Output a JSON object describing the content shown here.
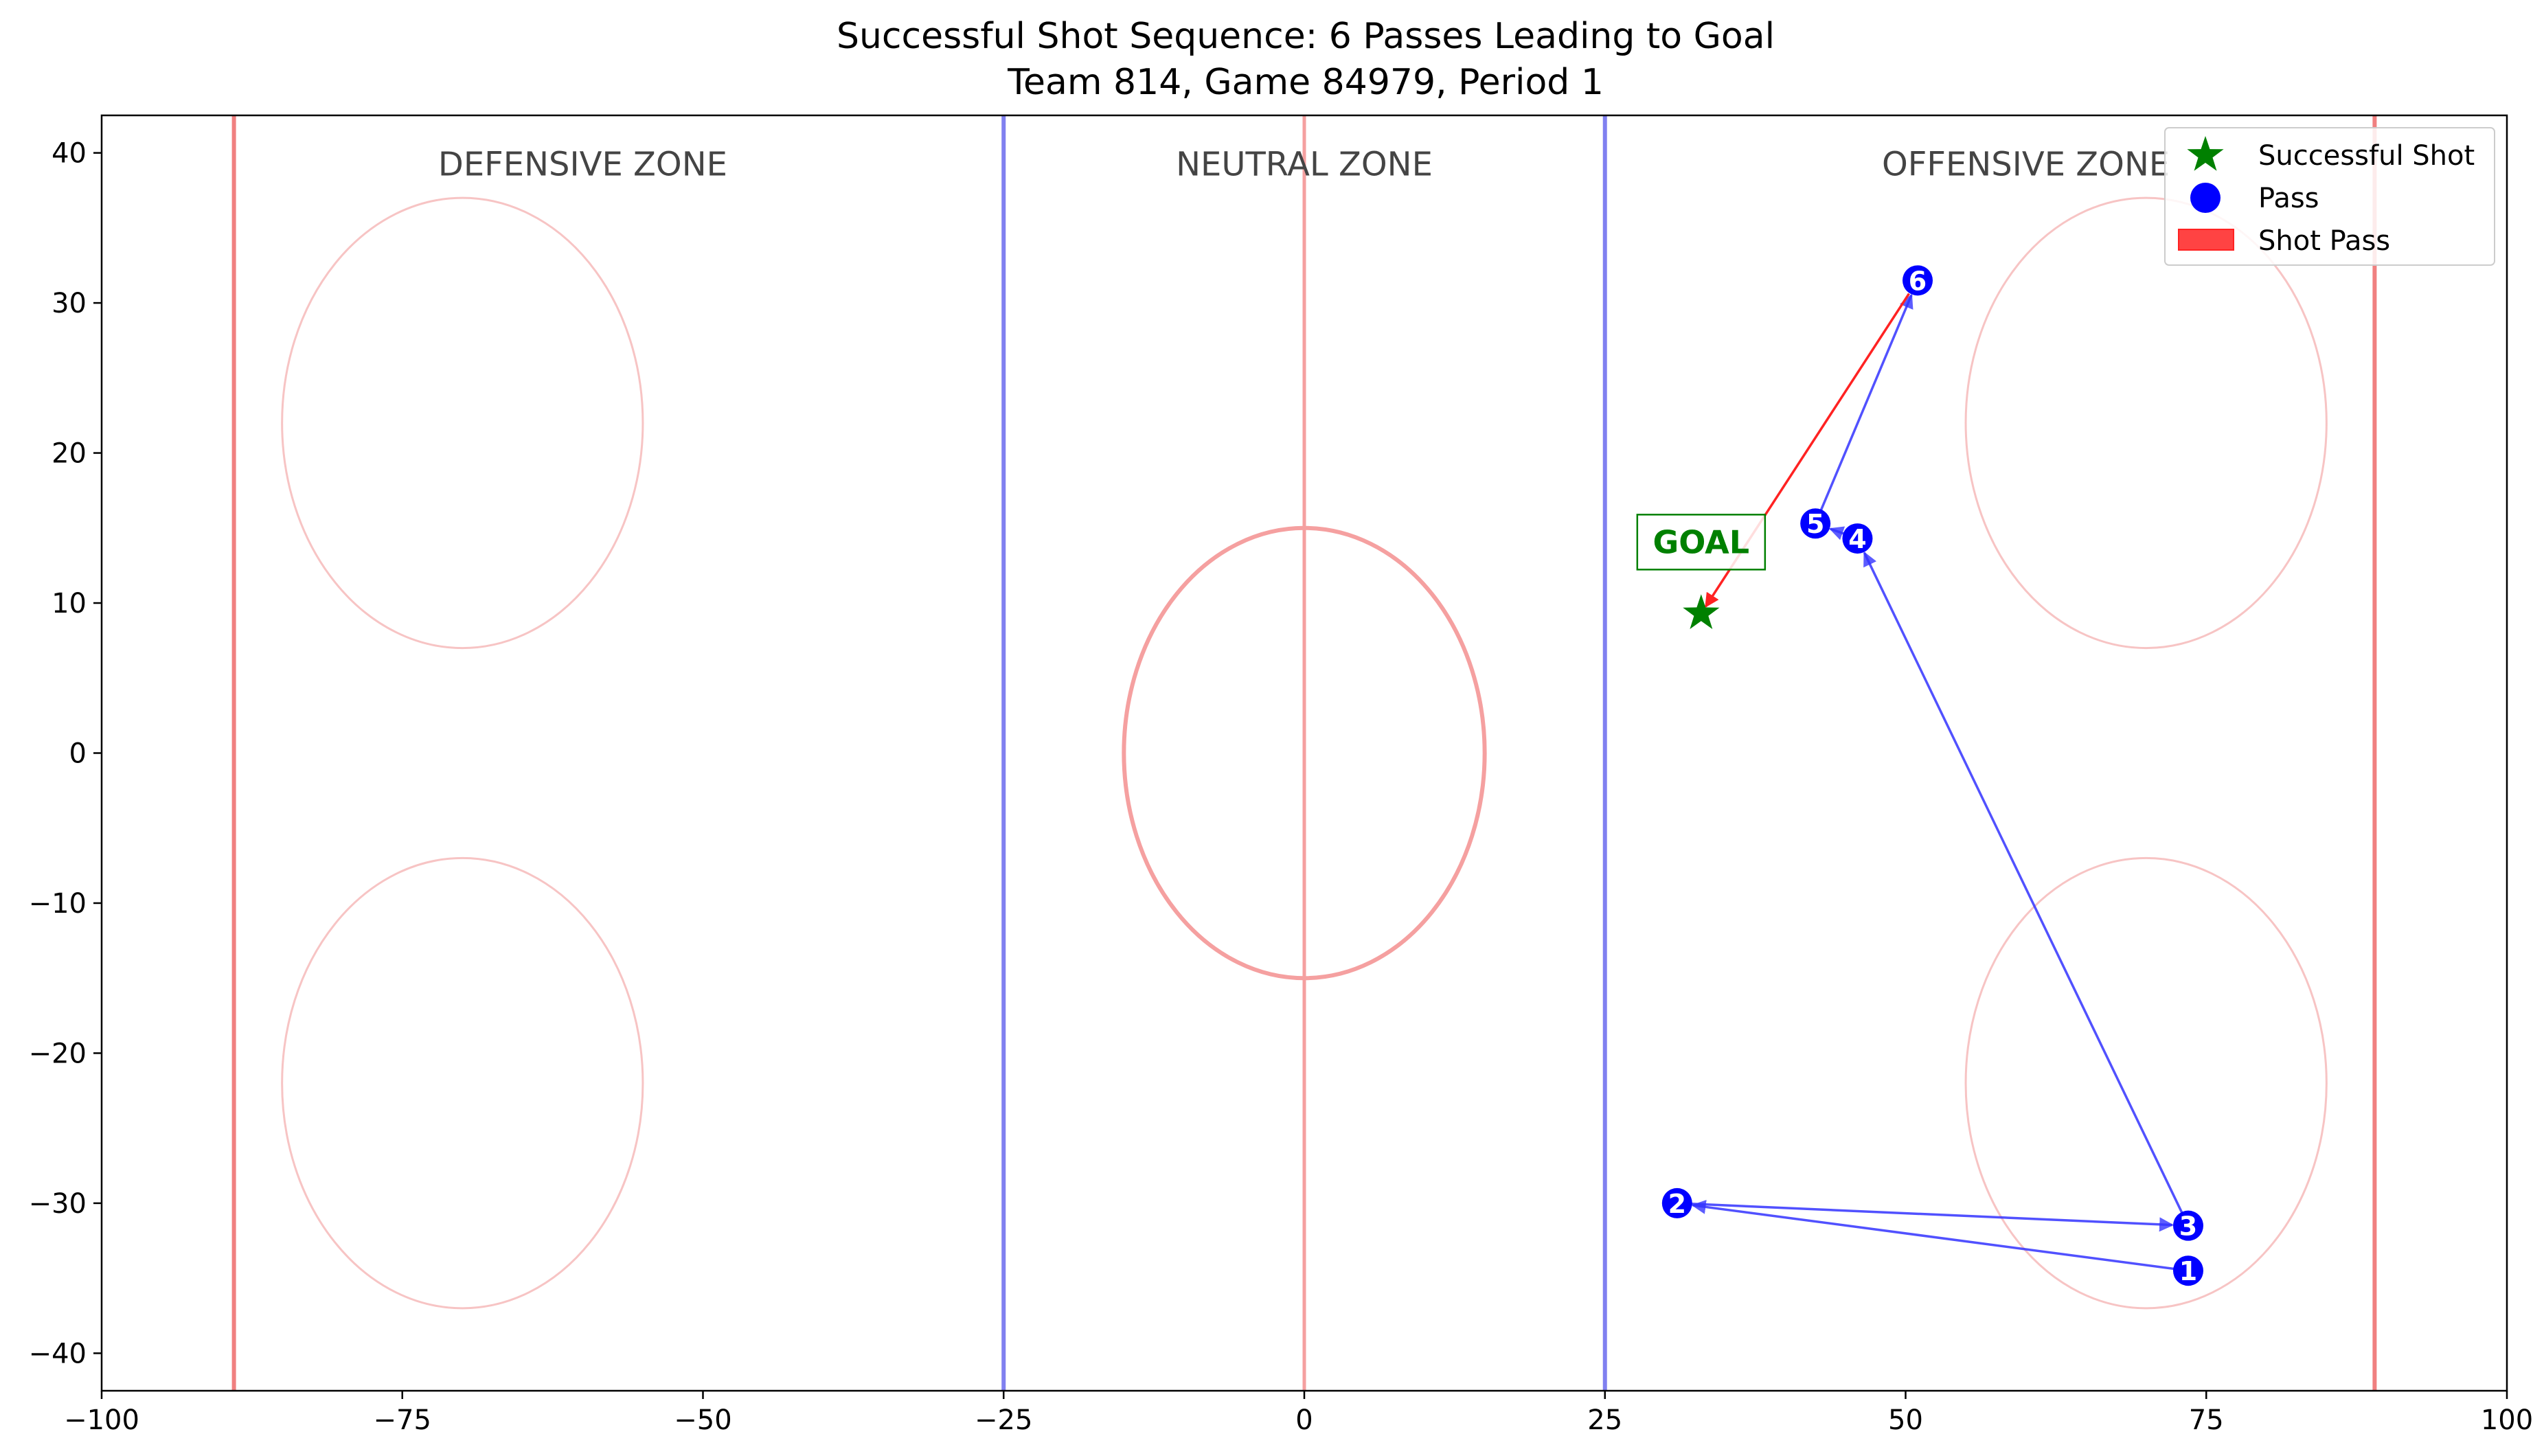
{
  "chart_data": {
    "type": "scatter",
    "title": "Successful Shot Sequence: 6 Passes Leading to Goal",
    "subtitle": "Team 814, Game 84979, Period 1",
    "xlabel": "",
    "ylabel": "",
    "xlim": [
      -100,
      100
    ],
    "ylim": [
      -42.5,
      42.5
    ],
    "xticks": [
      -100,
      -75,
      -50,
      -25,
      0,
      25,
      50,
      75,
      100
    ],
    "xtick_labels": [
      "−100",
      "−75",
      "−50",
      "−25",
      "0",
      "25",
      "50",
      "75",
      "100"
    ],
    "yticks": [
      -40,
      -30,
      -20,
      -10,
      0,
      10,
      20,
      30,
      40
    ],
    "ytick_labels": [
      "−40",
      "−30",
      "−20",
      "−10",
      "0",
      "10",
      "20",
      "30",
      "40"
    ],
    "grid": false,
    "legend_position": "top-right",
    "zone_labels": [
      {
        "text": "DEFENSIVE ZONE",
        "x": -60,
        "y": 38.5
      },
      {
        "text": "NEUTRAL ZONE",
        "x": 0,
        "y": 38.5
      },
      {
        "text": "OFFENSIVE ZONE",
        "x": 60,
        "y": 38.5
      }
    ],
    "rink_lines": [
      {
        "name": "goal-line-left",
        "x": -89,
        "color": "#f08080"
      },
      {
        "name": "blue-line-left",
        "x": -25,
        "color": "#8080f0"
      },
      {
        "name": "center-line",
        "x": 0,
        "color": "#f5a0a0"
      },
      {
        "name": "blue-line-right",
        "x": 25,
        "color": "#8080f0"
      },
      {
        "name": "goal-line-right",
        "x": 89,
        "color": "#f08080"
      }
    ],
    "faceoff_circles": [
      {
        "name": "center-circle",
        "cx": 0,
        "cy": 0,
        "r": 15
      },
      {
        "name": "defensive-top-circle",
        "cx": -70,
        "cy": 22,
        "r": 15
      },
      {
        "name": "defensive-bottom-circle",
        "cx": -70,
        "cy": -22,
        "r": 15
      },
      {
        "name": "offensive-top-circle",
        "cx": 70,
        "cy": 22,
        "r": 15
      },
      {
        "name": "offensive-bottom-circle",
        "cx": 70,
        "cy": -22,
        "r": 15
      }
    ],
    "passes": [
      {
        "label": "1",
        "x": 73.5,
        "y": -34.5
      },
      {
        "label": "2",
        "x": 31,
        "y": -30
      },
      {
        "label": "3",
        "x": 73.5,
        "y": -31.5
      },
      {
        "label": "4",
        "x": 46,
        "y": 14.3
      },
      {
        "label": "5",
        "x": 42.5,
        "y": 15.3
      },
      {
        "label": "6",
        "x": 51,
        "y": 31.5
      }
    ],
    "shot": {
      "x": 33,
      "y": 9.3,
      "annotation": "GOAL"
    },
    "legend": [
      "Successful Shot",
      "Pass",
      "Shot Pass"
    ],
    "colors": {
      "pass": "#0000ff",
      "pass_arrow": "#3333ff",
      "shot_pass": "#ff2222",
      "shot": "#008000",
      "zone_label": "#444444"
    }
  }
}
